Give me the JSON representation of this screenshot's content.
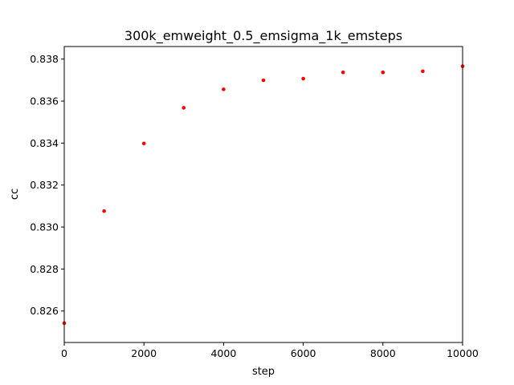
{
  "chart_data": {
    "type": "scatter",
    "title": "300k_emweight_0.5_emsigma_1k_emsteps",
    "xlabel": "step",
    "ylabel": "cc",
    "xlim": [
      0,
      10000
    ],
    "ylim": [
      0.8245,
      0.8386
    ],
    "xticks": [
      0,
      2000,
      4000,
      6000,
      8000,
      10000
    ],
    "yticks": [
      0.826,
      0.828,
      0.83,
      0.832,
      0.834,
      0.836,
      0.838
    ],
    "grid": false,
    "marker_color": "#ff0000",
    "series": [
      {
        "x": [
          0,
          1000,
          2000,
          3000,
          4000,
          5000,
          6000,
          7000,
          8000,
          9000,
          10000
        ],
        "y": [
          0.82542,
          0.83076,
          0.83398,
          0.83568,
          0.83656,
          0.83699,
          0.83707,
          0.83737,
          0.83737,
          0.83742,
          0.83766
        ]
      }
    ]
  }
}
